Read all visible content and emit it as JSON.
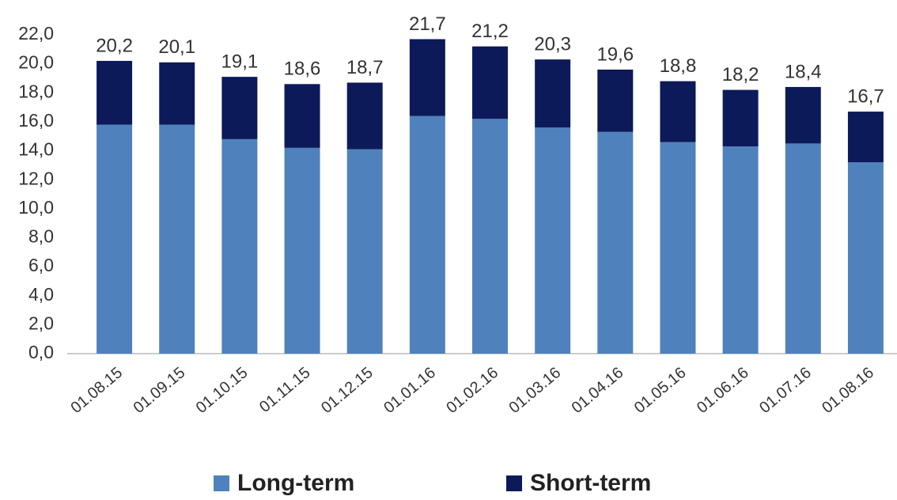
{
  "chart_data": {
    "type": "stacked_bar",
    "categories": [
      "01.08.15",
      "01.09.15",
      "01.10.15",
      "01.11.15",
      "01.12.15",
      "01.01.16",
      "01.02.16",
      "01.03.16",
      "01.04.16",
      "01.05.16",
      "01.06.16",
      "01.07.16",
      "01.08.16"
    ],
    "series": [
      {
        "name": "Long-term",
        "color": "#4f81bd",
        "values": [
          15.8,
          15.8,
          14.8,
          14.2,
          14.1,
          16.4,
          16.2,
          15.6,
          15.3,
          14.6,
          14.3,
          14.5,
          13.2
        ]
      },
      {
        "name": "Short-term",
        "color": "#0c1a5a",
        "values": [
          4.4,
          4.3,
          4.3,
          4.4,
          4.6,
          5.3,
          5.0,
          4.7,
          4.3,
          4.2,
          3.9,
          3.9,
          3.5
        ]
      }
    ],
    "totals": [
      20.2,
      20.1,
      19.1,
      18.6,
      18.7,
      21.7,
      21.2,
      20.3,
      19.6,
      18.8,
      18.2,
      18.4,
      16.7
    ],
    "total_labels": [
      "20,2",
      "20,1",
      "19,1",
      "18,6",
      "18,7",
      "21,7",
      "21,2",
      "20,3",
      "19,6",
      "18,8",
      "18,2",
      "18,4",
      "16,7"
    ],
    "ylim": [
      0,
      22
    ],
    "yticks": [
      {
        "value": 0,
        "label": "0,0"
      },
      {
        "value": 2,
        "label": "2,0"
      },
      {
        "value": 4,
        "label": "4,0"
      },
      {
        "value": 6,
        "label": "6,0"
      },
      {
        "value": 8,
        "label": "8,0"
      },
      {
        "value": 10,
        "label": "10,0"
      },
      {
        "value": 12,
        "label": "12,0"
      },
      {
        "value": 14,
        "label": "14,0"
      },
      {
        "value": 16,
        "label": "16,0"
      },
      {
        "value": 18,
        "label": "18,0"
      },
      {
        "value": 20,
        "label": "20,0"
      },
      {
        "value": 22,
        "label": "22,0"
      }
    ],
    "grid": false,
    "legend": "bottom"
  }
}
